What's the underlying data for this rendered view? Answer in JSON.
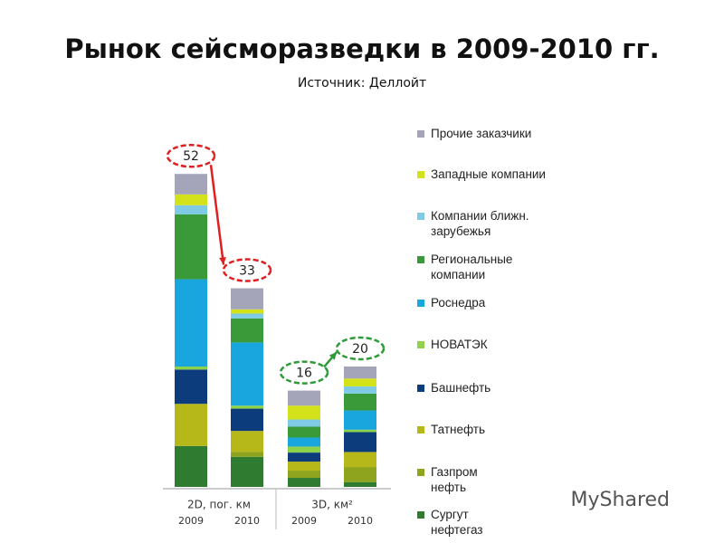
{
  "chart_data": {
    "type": "stacked_bar",
    "title": "Рынок сейсморазведки в 2009-2010 гг.",
    "subtitle": "Источник:  Деллойт",
    "groups": [
      "2D, пог. км",
      "3D, км²"
    ],
    "categories": [
      "2009",
      "2010",
      "2009",
      "2010"
    ],
    "totals": [
      52,
      33,
      16,
      20
    ],
    "series": [
      {
        "name": "Прочие заказчики",
        "color": "#a5a5b9",
        "values": [
          3.4,
          3.5,
          2.5,
          2
        ]
      },
      {
        "name": "Западные компании",
        "color": "#d3e21b",
        "values": [
          1.8,
          0.7,
          2.3,
          1.3
        ]
      },
      {
        "name": "Компании ближн.\nзарубежья",
        "color": "#7fcbe5",
        "values": [
          1.5,
          0.8,
          1.2,
          1.2
        ]
      },
      {
        "name": "Региональные\nкомпании",
        "color": "#3a9a3a",
        "values": [
          10.8,
          4,
          1.8,
          2.8
        ]
      },
      {
        "name": "Роснедра",
        "color": "#19a5dd",
        "values": [
          14.5,
          10.5,
          1.5,
          3.2
        ]
      },
      {
        "name": "НОВАТЭК",
        "color": "#8ed24c",
        "values": [
          0.5,
          0.5,
          1,
          0.4
        ]
      },
      {
        "name": "Башнефть",
        "color": "#0d3c7d",
        "values": [
          5.7,
          3.7,
          1.5,
          3.3
        ]
      },
      {
        "name": "Татнефть",
        "color": "#b6b81a",
        "values": [
          7,
          3.5,
          1.5,
          2.5
        ]
      },
      {
        "name": "Газпром\nнефть",
        "color": "#8ea41f",
        "values": [
          0,
          0.8,
          1.2,
          2.5
        ]
      },
      {
        "name": "Сургут\nнефтегаз",
        "color": "#2f7c30",
        "values": [
          6.8,
          5,
          1.5,
          0.8
        ]
      }
    ],
    "watermark": "MyShared"
  }
}
